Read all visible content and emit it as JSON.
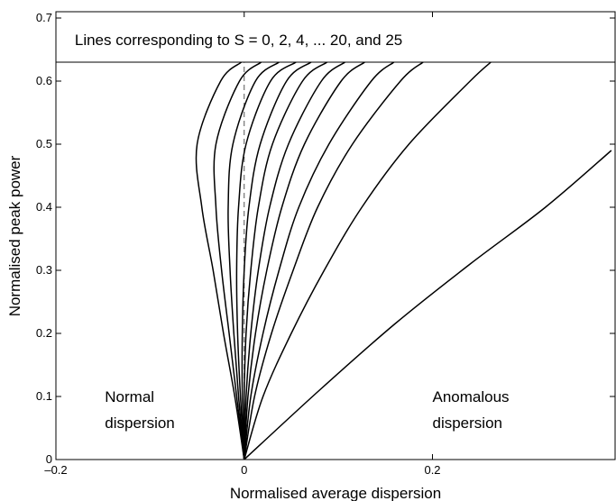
{
  "chart_data": {
    "type": "line",
    "xlabel": "Normalised average dispersion",
    "ylabel": "Normalised peak power",
    "xlim": [
      -0.2,
      0.394
    ],
    "ylim": [
      0,
      0.71
    ],
    "xticks": [
      {
        "value": -0.2,
        "label": "–0.2"
      },
      0,
      0.2
    ],
    "yticks": [
      0,
      0.1,
      0.2,
      0.3,
      0.4,
      0.5,
      0.6,
      0.7
    ],
    "hline": 0.63,
    "vline": 0,
    "annotations": [
      {
        "lines": [
          "Lines corresponding to S = 0, 2, 4, ... 20, and 25"
        ],
        "x": -0.18,
        "y": 0.666
      },
      {
        "lines": [
          "Normal",
          "dispersion"
        ],
        "x": -0.148,
        "y": 0.1
      },
      {
        "lines": [
          "Anomalous",
          "dispersion"
        ],
        "x": 0.2,
        "y": 0.1
      }
    ],
    "color": "#000000",
    "series": [
      {
        "x": [
          0,
          -0.01,
          -0.022,
          -0.033,
          -0.045,
          -0.05,
          -0.025,
          -0.003
        ],
        "values": [
          0,
          0.1,
          0.2,
          0.3,
          0.4,
          0.5,
          0.6,
          0.63
        ]
      },
      {
        "x": [
          0,
          -0.008,
          -0.016,
          -0.024,
          -0.03,
          -0.03,
          -0.005,
          0.018
        ],
        "values": [
          0,
          0.1,
          0.2,
          0.3,
          0.4,
          0.5,
          0.6,
          0.63
        ]
      },
      {
        "x": [
          0,
          -0.006,
          -0.011,
          -0.015,
          -0.017,
          -0.012,
          0.012,
          0.037
        ],
        "values": [
          0,
          0.1,
          0.2,
          0.3,
          0.4,
          0.5,
          0.6,
          0.63
        ]
      },
      {
        "x": [
          0,
          -0.004,
          -0.007,
          -0.008,
          -0.006,
          0.002,
          0.028,
          0.055
        ],
        "values": [
          0,
          0.1,
          0.2,
          0.3,
          0.4,
          0.5,
          0.6,
          0.63
        ]
      },
      {
        "x": [
          0,
          -0.002,
          -0.002,
          0,
          0.005,
          0.017,
          0.045,
          0.071
        ],
        "values": [
          0,
          0.1,
          0.2,
          0.3,
          0.4,
          0.5,
          0.6,
          0.63
        ]
      },
      {
        "x": [
          0,
          0,
          0.002,
          0.007,
          0.015,
          0.03,
          0.062,
          0.088
        ],
        "values": [
          0,
          0.1,
          0.2,
          0.3,
          0.4,
          0.5,
          0.6,
          0.63
        ]
      },
      {
        "x": [
          0,
          0.002,
          0.007,
          0.015,
          0.027,
          0.047,
          0.082,
          0.107
        ],
        "values": [
          0,
          0.1,
          0.2,
          0.3,
          0.4,
          0.5,
          0.6,
          0.63
        ]
      },
      {
        "x": [
          0,
          0.004,
          0.012,
          0.024,
          0.04,
          0.064,
          0.103,
          0.128
        ],
        "values": [
          0,
          0.1,
          0.2,
          0.3,
          0.4,
          0.5,
          0.6,
          0.63
        ]
      },
      {
        "x": [
          0,
          0.007,
          0.02,
          0.037,
          0.058,
          0.09,
          0.135,
          0.159
        ],
        "values": [
          0,
          0.1,
          0.2,
          0.3,
          0.4,
          0.5,
          0.6,
          0.63
        ]
      },
      {
        "x": [
          0,
          0.011,
          0.029,
          0.052,
          0.078,
          0.115,
          0.166,
          0.19
        ],
        "values": [
          0,
          0.1,
          0.2,
          0.3,
          0.4,
          0.5,
          0.6,
          0.63
        ]
      },
      {
        "x": [
          0,
          0.02,
          0.05,
          0.085,
          0.125,
          0.175,
          0.24,
          0.262
        ],
        "values": [
          0,
          0.1,
          0.2,
          0.3,
          0.4,
          0.5,
          0.6,
          0.63
        ]
      },
      {
        "x": [
          0,
          0.08,
          0.16,
          0.24,
          0.32,
          0.39
        ],
        "values": [
          0,
          0.11,
          0.215,
          0.31,
          0.4,
          0.49
        ]
      }
    ]
  }
}
